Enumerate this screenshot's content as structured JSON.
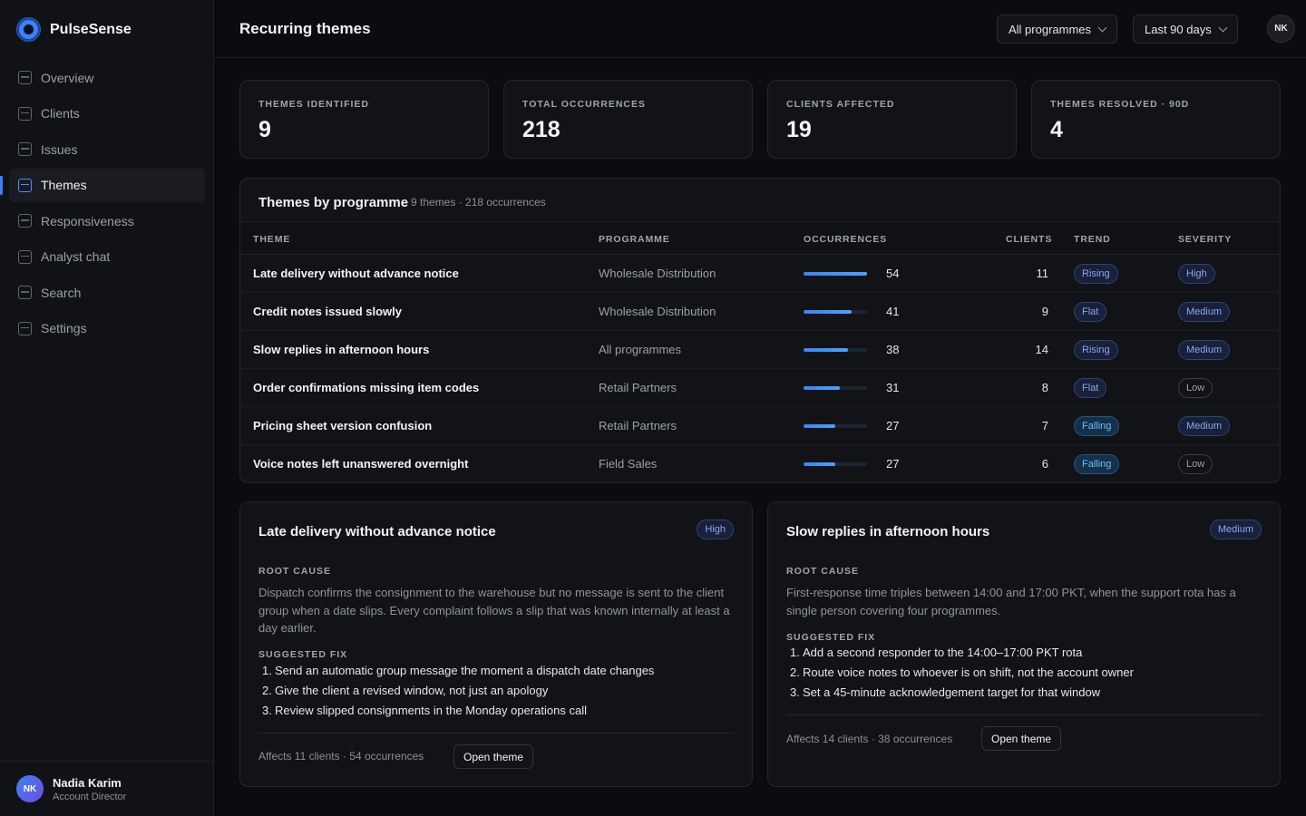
{
  "app": {
    "name": "PulseSense"
  },
  "sidebar": {
    "items": [
      {
        "label": "Overview"
      },
      {
        "label": "Clients"
      },
      {
        "label": "Issues"
      },
      {
        "label": "Themes",
        "active": true
      },
      {
        "label": "Responsiveness"
      },
      {
        "label": "Analyst chat"
      },
      {
        "label": "Search"
      },
      {
        "label": "Settings"
      }
    ],
    "user": {
      "initials": "NK",
      "name": "Nadia Karim",
      "role": "Account Director"
    }
  },
  "header": {
    "title": "Recurring themes",
    "programme_filter": "All programmes",
    "period_filter": "Last 90 days",
    "avatar_initials": "NK"
  },
  "stats": [
    {
      "label": "THEMES IDENTIFIED",
      "value": "9"
    },
    {
      "label": "TOTAL OCCURRENCES",
      "value": "218"
    },
    {
      "label": "CLIENTS AFFECTED",
      "value": "19"
    },
    {
      "label": "THEMES RESOLVED · 90D",
      "value": "4"
    }
  ],
  "table": {
    "title": "Themes by programme",
    "meta": "9 themes · 218 occurrences",
    "columns": [
      "THEME",
      "PROGRAMME",
      "OCCURRENCES",
      "CLIENTS",
      "TREND",
      "SEVERITY"
    ],
    "rows": [
      {
        "theme": "Late delivery without advance notice",
        "programme": "Wholesale Distribution",
        "occurrences": "54",
        "share": 1.0,
        "clients": "11",
        "trend": "Rising",
        "severity": "High"
      },
      {
        "theme": "Credit notes issued slowly",
        "programme": "Wholesale Distribution",
        "occurrences": "41",
        "share": 0.76,
        "clients": "9",
        "trend": "Flat",
        "severity": "Medium"
      },
      {
        "theme": "Slow replies in afternoon hours",
        "programme": "All programmes",
        "occurrences": "38",
        "share": 0.7,
        "clients": "14",
        "trend": "Rising",
        "severity": "Medium"
      },
      {
        "theme": "Order confirmations missing item codes",
        "programme": "Retail Partners",
        "occurrences": "31",
        "share": 0.57,
        "clients": "8",
        "trend": "Flat",
        "severity": "Low"
      },
      {
        "theme": "Pricing sheet version confusion",
        "programme": "Retail Partners",
        "occurrences": "27",
        "share": 0.5,
        "clients": "7",
        "trend": "Falling",
        "severity": "Medium"
      },
      {
        "theme": "Voice notes left unanswered overnight",
        "programme": "Field Sales",
        "occurrences": "27",
        "share": 0.5,
        "clients": "6",
        "trend": "Falling",
        "severity": "Low"
      }
    ]
  },
  "details": [
    {
      "title": "Late delivery without advance notice",
      "severity": "High",
      "root_cause_label": "ROOT CAUSE",
      "root_cause": "Dispatch confirms the consignment to the warehouse but no message is sent to the client group when a date slips. Every complaint follows a slip that was known internally at least a day earlier.",
      "fix_label": "SUGGESTED FIX",
      "fixes": [
        "Send an automatic group message the moment a dispatch date changes",
        "Give the client a revised window, not just an apology",
        "Review slipped consignments in the Monday operations call"
      ],
      "footer": "Affects 11 clients · 54 occurrences",
      "button": "Open theme"
    },
    {
      "title": "Slow replies in afternoon hours",
      "severity": "Medium",
      "root_cause_label": "ROOT CAUSE",
      "root_cause": "First-response time triples between 14:00 and 17:00 PKT, when the support rota has a single person covering four programmes.",
      "fix_label": "SUGGESTED FIX",
      "fixes": [
        "Add a second responder to the 14:00–17:00 PKT rota",
        "Route voice notes to whoever is on shift, not the account owner",
        "Set a 45-minute acknowledgement target for that window"
      ],
      "footer": "Affects 14 clients · 38 occurrences",
      "button": "Open theme"
    }
  ]
}
